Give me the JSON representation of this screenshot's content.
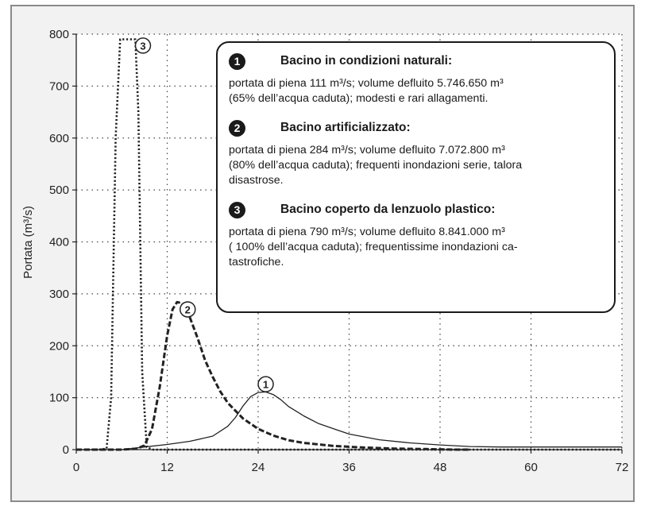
{
  "chart_data": {
    "type": "line",
    "title": "",
    "xlabel": "",
    "ylabel": "Portata (m³/s)",
    "xlim": [
      0,
      72
    ],
    "ylim": [
      0,
      800
    ],
    "xticks": [
      0,
      12,
      24,
      36,
      48,
      60,
      72
    ],
    "yticks": [
      0,
      100,
      200,
      300,
      400,
      500,
      600,
      700,
      800
    ],
    "grid": true,
    "legend_placement": "top-right",
    "series": [
      {
        "name": "1",
        "style": "solid",
        "color": "#222222",
        "x": [
          0,
          6,
          9,
          12,
          15,
          18,
          20,
          21,
          22,
          23,
          24,
          25,
          26,
          27,
          28,
          30,
          32,
          34,
          36,
          40,
          44,
          48,
          52,
          56,
          60,
          66,
          72
        ],
        "values": [
          0,
          0,
          5,
          10,
          16,
          26,
          45,
          62,
          84,
          102,
          110,
          111,
          106,
          96,
          83,
          65,
          50,
          40,
          30,
          19,
          13,
          9,
          6,
          5,
          5,
          5,
          5
        ]
      },
      {
        "name": "2",
        "style": "dashed",
        "color": "#222222",
        "x": [
          0,
          6,
          8,
          9,
          10,
          11,
          12,
          12.7,
          13.3,
          14,
          14.8,
          16,
          17,
          18,
          19,
          20,
          22,
          24,
          26,
          28,
          30,
          34,
          38,
          42,
          46,
          50,
          52
        ],
        "values": [
          0,
          0,
          2,
          8,
          40,
          120,
          220,
          270,
          284,
          282,
          262,
          215,
          172,
          140,
          112,
          90,
          60,
          40,
          27,
          18,
          13,
          7,
          4,
          2,
          1,
          0,
          0
        ]
      },
      {
        "name": "3",
        "style": "dotted",
        "color": "#222222",
        "x": [
          0,
          3,
          4,
          4.6,
          5.2,
          5.8,
          7.8,
          8.2,
          8.7,
          9.3,
          10,
          20,
          72
        ],
        "values": [
          0,
          0,
          2,
          100,
          600,
          790,
          790,
          650,
          150,
          5,
          0,
          0,
          0
        ]
      }
    ],
    "annotations": [
      {
        "label": "3",
        "x": 8.8,
        "y": 778
      },
      {
        "label": "2",
        "x": 14.7,
        "y": 270
      },
      {
        "label": "1",
        "x": 25,
        "y": 126
      }
    ]
  },
  "legend": {
    "entries": [
      {
        "number": "1",
        "title": "Bacino in condizioni naturali:",
        "lines": [
          "portata di piena 111 m³/s; volume defluito 5.746.650 m³",
          "(65% dell’acqua caduta); modesti e rari allagamenti."
        ]
      },
      {
        "number": "2",
        "title": "Bacino artificializzato:",
        "lines": [
          "portata di piena 284 m³/s; volume defluito 7.072.800 m³",
          "(80% dell’acqua caduta); frequenti inondazioni serie, talora",
          "disastrose."
        ]
      },
      {
        "number": "3",
        "title": "Bacino coperto da lenzuolo plastico:",
        "lines": [
          "portata di piena 790 m³/s; volume defluito 8.841.000 m³",
          "( 100% dell’acqua caduta); frequentissime inondazioni ca-",
          "tastrofiche."
        ]
      }
    ]
  }
}
